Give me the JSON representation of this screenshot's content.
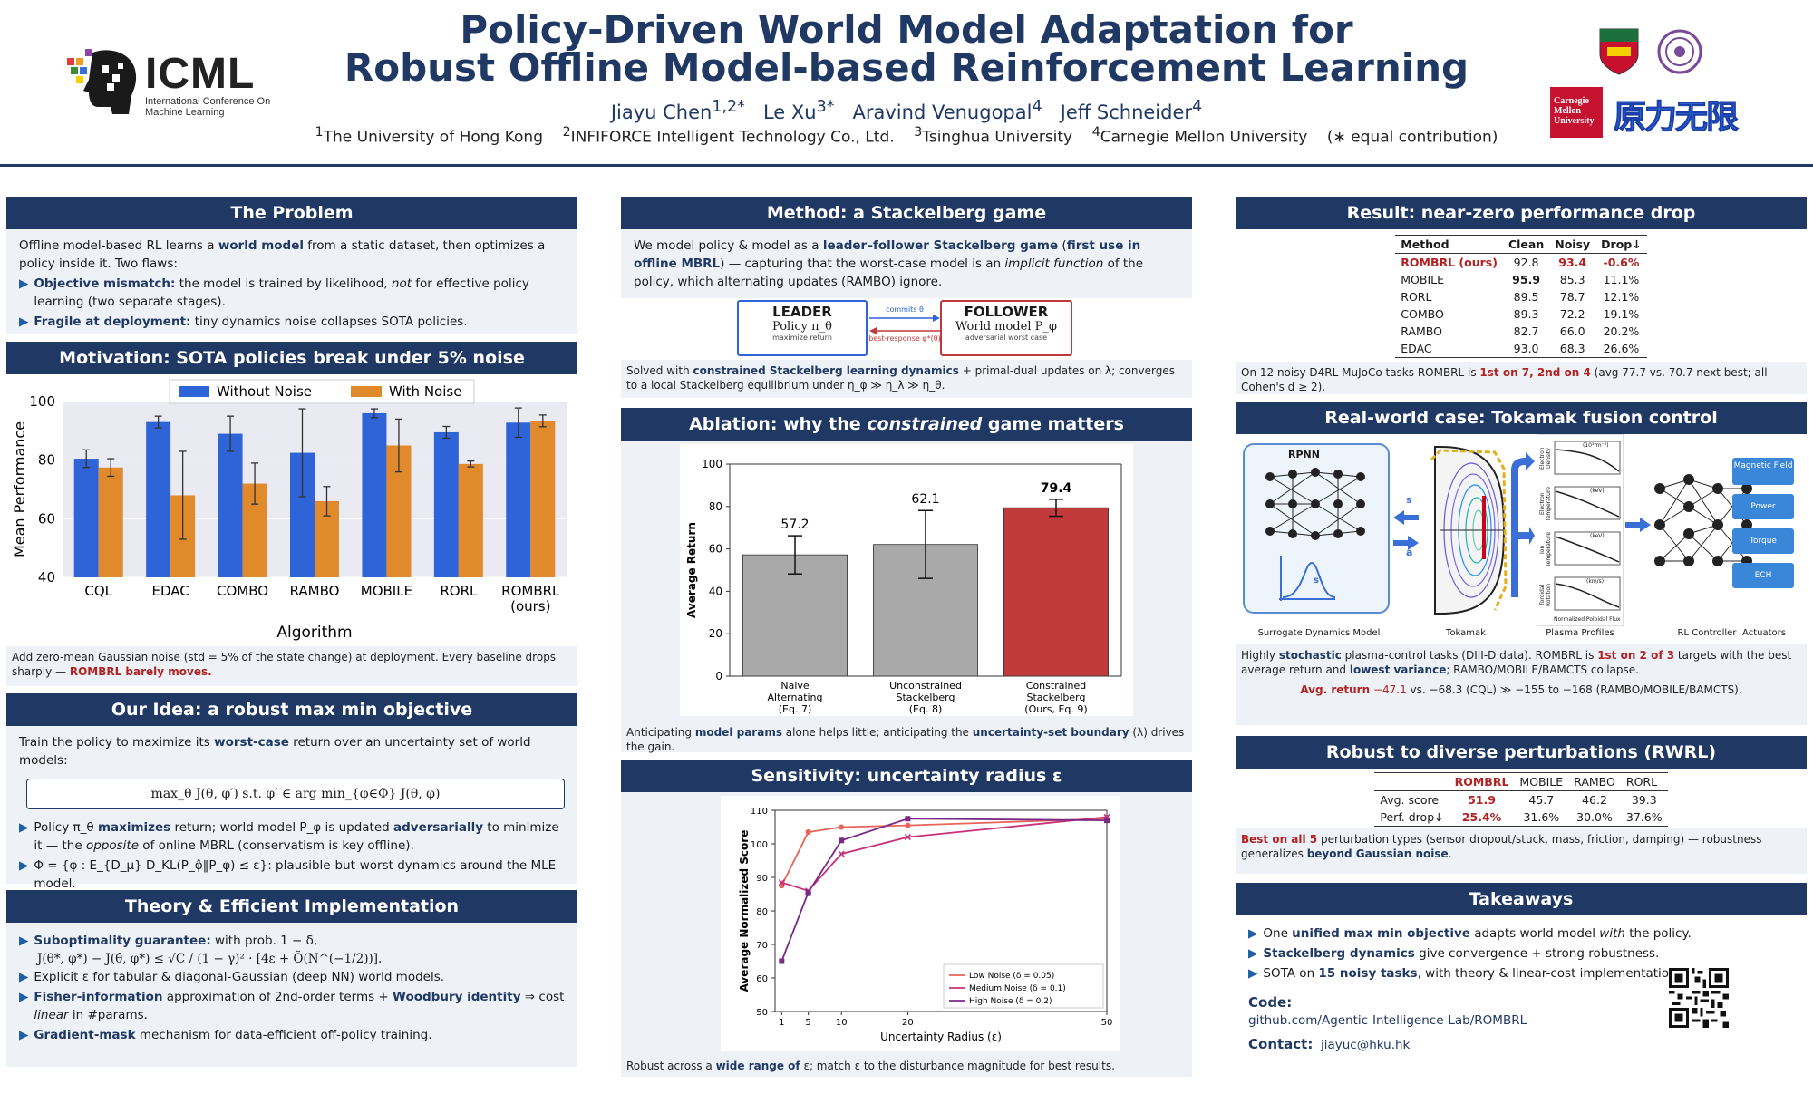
{
  "header": {
    "title_line1": "Policy-Driven World Model Adaptation for",
    "title_line2": "Robust Offline Model-based Reinforcement Learning",
    "authors": [
      "Jiayu Chen",
      "Le Xu",
      "Aravind Venugopal",
      "Jeff Schneider"
    ],
    "author_marks": [
      "1,2*",
      "3*",
      "4",
      "4"
    ],
    "affiliations": [
      "The University of Hong Kong",
      "INFIFORCE Intelligent Technology Co., Ltd.",
      "Tsinghua University",
      "Carnegie Mellon University",
      "(∗ equal contribution)"
    ],
    "affil_marks": [
      "1",
      "2",
      "3",
      "4",
      ""
    ],
    "icml_word": "ICML",
    "icml_sub": "International Conference On Machine Learning",
    "cmu_logo": "Carnegie Mellon University",
    "partner_logo": "原力无限"
  },
  "problem": {
    "title": "The Problem",
    "intro_a": "Offline model-based RL learns a ",
    "intro_hl": "world model",
    "intro_b": " from a static dataset, then optimizes a policy inside it.  Two flaws:",
    "b1_hl": "Objective mismatch:",
    "b1_a": " the model is trained by likelihood, ",
    "b1_em": "not",
    "b1_b": " for effective policy learning (two separate stages).",
    "b2_hl": "Fragile at deployment:",
    "b2_a": " tiny dynamics noise collapses SOTA policies."
  },
  "motivation": {
    "title": "Motivation:  SOTA policies break under 5% noise",
    "cap_a": "Add zero-mean Gaussian noise (std = 5% of the state change) at deployment.  Every baseline drops sharply — ",
    "cap_red": "ROMBRL barely moves."
  },
  "idea": {
    "title": "Our Idea:  a robust max min objective",
    "intro_a": "Train the policy to maximize its ",
    "intro_hl": "worst-case",
    "intro_b": " return over an uncertainty set of world models:",
    "formula": "max_θ  J(θ, φ′)  s.t.  φ′ ∈ arg min_{φ∈Φ} J(θ, φ)",
    "b1_a": "Policy π_θ ",
    "b1_hl1": "maximizes",
    "b1_b": " return; world model P_φ is updated ",
    "b1_hl2": "adversarially",
    "b1_c": " to minimize it — the ",
    "b1_em": "opposite",
    "b1_d": " of online MBRL (conservatism is key offline).",
    "b2": "Φ = {φ :  E_{D_μ} D_KL(P_φ̂‖P_φ) ≤ ε}:  plausible-but-worst dynamics around the MLE model."
  },
  "theory": {
    "title": "Theory & Efficient Implementation",
    "b1_hl": "Suboptimality guarantee:",
    "b1_a": " with prob. 1 − δ,",
    "b1_formula": "J(θ*, φ*) − J(θ̂, φ*) ≤ √C / (1 − γ)² · [4ε + Õ(N^(−1/2))].",
    "b2": "Explicit ε for tabular & diagonal-Gaussian (deep NN) world models.",
    "b3_hl1": "Fisher-information",
    "b3_a": " approximation of 2nd-order terms + ",
    "b3_hl2": "Woodbury identity",
    "b3_b": " ⇒ cost ",
    "b3_em": "linear",
    "b3_c": " in #params.",
    "b4_hl": "Gradient-mask",
    "b4_a": " mechanism for data-efficient off-policy training."
  },
  "method": {
    "title": "Method:  a Stackelberg game",
    "intro_a": "We model policy & model as a ",
    "intro_hl1": "leader–follower Stackelberg game",
    "intro_b": " (",
    "intro_hl2": "first use in offline MBRL",
    "intro_c": ") — capturing that the worst-case model is an ",
    "intro_em": "implicit function",
    "intro_d": " of the policy, which alternating updates (RAMBO) ignore.",
    "leader_title": "LEADER",
    "leader_sub": "Policy π_θ",
    "leader_note": "maximize return",
    "follower_title": "FOLLOWER",
    "follower_sub": "World model P_φ",
    "follower_note": "adversarial worst case",
    "arrow_top": "commits θ",
    "arrow_bot": "best-response φ*(θ)",
    "cap_a": "Solved with ",
    "cap_hl": "constrained Stackelberg learning dynamics",
    "cap_b": " + primal-dual updates on λ; converges to a local Stackelberg equilibrium under η_φ ≫ η_λ ≫ η_θ."
  },
  "ablation": {
    "title_a": "Ablation:  why the ",
    "title_em": "constrained",
    "title_b": " game matters",
    "cap_a": "Anticipating ",
    "cap_hl1": "model params",
    "cap_b": " alone helps little; anticipating the ",
    "cap_hl2": "uncertainty-set boundary",
    "cap_c": " (λ) drives the gain."
  },
  "sensitivity": {
    "title": "Sensitivity:  uncertainty radius ε",
    "cap_a": "Robust across a ",
    "cap_hl": "wide range of",
    "cap_b": " ε; match ε to the disturbance magnitude for best results."
  },
  "result": {
    "title": "Result:  near-zero performance drop",
    "headers": [
      "Method",
      "Clean",
      "Noisy",
      "Drop↓"
    ],
    "rows": [
      [
        "ROMBRL (ours)",
        "92.8",
        "93.4",
        "-0.6%"
      ],
      [
        "MOBILE",
        "95.9",
        "85.3",
        "11.1%"
      ],
      [
        "RORL",
        "89.5",
        "78.7",
        "12.1%"
      ],
      [
        "COMBO",
        "89.3",
        "72.2",
        "19.1%"
      ],
      [
        "RAMBO",
        "82.7",
        "66.0",
        "20.2%"
      ],
      [
        "EDAC",
        "93.0",
        "68.3",
        "26.6%"
      ]
    ],
    "cap_a": "On 12 noisy D4RL MuJoCo tasks ROMBRL is ",
    "cap_red": "1st on 7, 2nd on 4",
    "cap_b": " (avg 77.7 vs. 70.7 next best; all Cohen's d ≥ 2)."
  },
  "tokamak": {
    "title": "Real-world case:  Tokamak fusion control",
    "rpnn": "RPNN",
    "labels": [
      "Surrogate Dynamics Model",
      "Tokamak",
      "Plasma Profiles",
      "RL Controller",
      "Actuators"
    ],
    "sa": [
      "s",
      "a"
    ],
    "sprime": "s′",
    "profiles": [
      "Electron Density",
      "Electron Temperature",
      "Ion Temperature",
      "Toroidal Rotation"
    ],
    "profile_units": [
      "(10¹⁹m⁻³)",
      "(keV)",
      "(keV)",
      "(km/s)"
    ],
    "profile_xlabel": "Normalized Poloidal Flux",
    "actuators": [
      "Magnetic Field",
      "Power",
      "Torque",
      "ECH"
    ],
    "cap_a": "Highly ",
    "cap_hl1": "stochastic",
    "cap_b": " plasma-control tasks (DIII-D data).  ROMBRL is ",
    "cap_red": "1st on 2 of 3",
    "cap_c": " targets with the best average return and ",
    "cap_hl2": "lowest variance",
    "cap_d": "; RAMBO/MOBILE/BAMCTS collapse.",
    "avg_red": "Avg. return",
    "avg_val": " −47.1",
    "avg_rest": "  vs. −68.3 (CQL)  ≫  −155 to −168 (RAMBO/MOBILE/BAMCTS)."
  },
  "rwrl": {
    "title": "Robust to diverse perturbations (RWRL)",
    "headers": [
      "",
      "ROMBRL",
      "MOBILE",
      "RAMBO",
      "RORL"
    ],
    "rows": [
      [
        "Avg. score",
        "51.9",
        "45.7",
        "46.2",
        "39.3"
      ],
      [
        "Perf. drop↓",
        "25.4%",
        "31.6%",
        "30.0%",
        "37.6%"
      ]
    ],
    "cap_red": "Best on all 5",
    "cap_a": " perturbation types (sensor dropout/stuck, mass, friction, damping) — robustness generalizes ",
    "cap_hl": "beyond Gaussian noise",
    "cap_b": "."
  },
  "takeaways": {
    "title": "Takeaways",
    "b1_a": "One ",
    "b1_hl": "unified max min objective",
    "b1_b": " adapts world model ",
    "b1_em": "with",
    "b1_c": " the policy.",
    "b2_hl": "Stackelberg dynamics",
    "b2_a": " give convergence + strong robustness.",
    "b3_a": "SOTA on ",
    "b3_hl": "15 noisy tasks",
    "b3_b": ", with theory & linear-cost implementation.",
    "code_label": "Code:",
    "code_url": "github.com/Agentic-Intelligence-Lab/ROMBRL",
    "contact_label": "Contact:",
    "contact": "jiayuc@hku.hk"
  },
  "chart_data": [
    {
      "type": "bar",
      "xlabel": "Algorithm",
      "ylabel": "Mean Performance",
      "ylim": [
        40,
        100
      ],
      "yticks": [
        40,
        60,
        80,
        100
      ],
      "legend_placement": "top-center",
      "categories": [
        "CQL",
        "EDAC",
        "COMBO",
        "RAMBO",
        "MOBILE",
        "RORL",
        "ROMBRL (ours)"
      ],
      "series": [
        {
          "name": "Without Noise",
          "color": "#2f64d8",
          "values": [
            80.5,
            93,
            89,
            82.5,
            96,
            89.5,
            92.8
          ],
          "err": [
            3,
            2,
            6,
            15,
            1.5,
            2,
            5
          ]
        },
        {
          "name": "With Noise",
          "color": "#e08a2c",
          "values": [
            77.5,
            68,
            72,
            66,
            85,
            78.7,
            93.4
          ],
          "err": [
            3,
            15,
            7,
            5,
            9,
            1,
            2
          ]
        }
      ],
      "grid": true
    },
    {
      "type": "bar",
      "ylabel": "Average Return",
      "ylim": [
        0,
        100
      ],
      "yticks": [
        0,
        20,
        40,
        60,
        80,
        100
      ],
      "categories": [
        "Naive\nAlternating\n(Eq. 7)",
        "Unconstrained\nStackelberg\n(Eq. 8)",
        "Constrained\nStackelberg\n(Ours, Eq. 9)"
      ],
      "values": [
        57.2,
        62.1,
        79.4
      ],
      "err": [
        9,
        16,
        4
      ],
      "value_labels": [
        "57.2",
        "62.1",
        "79.4"
      ],
      "colors": [
        "#a9a9a9",
        "#a9a9a9",
        "#c0393b"
      ]
    },
    {
      "type": "line",
      "xlabel": "Uncertainty Radius (ε)",
      "ylabel": "Average Normalized Score",
      "xlim": [
        0,
        50
      ],
      "ylim": [
        50,
        110
      ],
      "xticks": [
        1,
        5,
        10,
        20,
        50
      ],
      "yticks": [
        50,
        60,
        70,
        80,
        90,
        100,
        110
      ],
      "legend_placement": "bottom-right",
      "series": [
        {
          "name": "Low Noise (δ = 0.05)",
          "color": "#e8625a",
          "marker": "o",
          "x": [
            1,
            5,
            10,
            20,
            50
          ],
          "y": [
            87.5,
            103.5,
            105,
            105.5,
            107.5
          ]
        },
        {
          "name": "Medium Noise (δ = 0.1)",
          "color": "#c8327a",
          "marker": "x",
          "x": [
            1,
            5,
            10,
            20,
            50
          ],
          "y": [
            88.5,
            86,
            97,
            102,
            108
          ]
        },
        {
          "name": "High Noise (δ = 0.2)",
          "color": "#7a2a86",
          "marker": "s",
          "x": [
            1,
            5,
            10,
            20,
            50
          ],
          "y": [
            65,
            85.5,
            101,
            107.5,
            107
          ]
        }
      ],
      "grid": false
    }
  ]
}
